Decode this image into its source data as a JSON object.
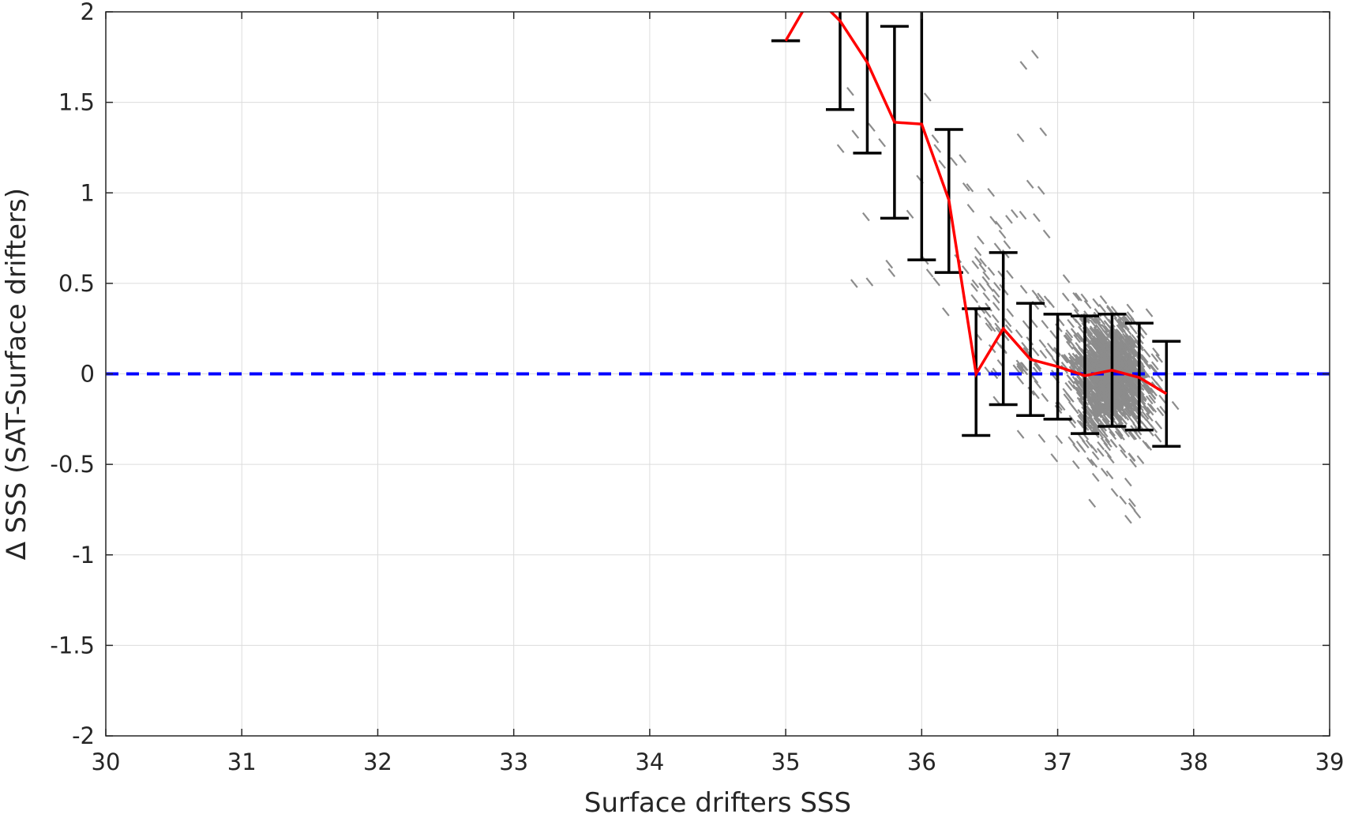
{
  "chart_data": {
    "type": "scatter",
    "xlabel": "Surface drifters SSS",
    "ylabel": "∆ SSS (SAT-Surface drifters)",
    "xlim": [
      30,
      39
    ],
    "ylim": [
      -2,
      2
    ],
    "x_ticks": [
      "30",
      "31",
      "32",
      "33",
      "34",
      "35",
      "36",
      "37",
      "38",
      "39"
    ],
    "y_ticks": [
      "2",
      "1.5",
      "1",
      "0.5",
      "0",
      "-0.5",
      "-1",
      "-1.5",
      "-2"
    ],
    "grid": true,
    "reference_line": {
      "y": 0,
      "style": "dashed",
      "color": "#0000ff"
    },
    "series": [
      {
        "type": "line",
        "color": "#ff0000",
        "x": [
          35.0,
          35.2,
          35.4,
          35.6,
          35.8,
          36.0,
          36.2,
          36.4,
          36.6,
          36.8,
          37.0,
          37.2,
          37.4,
          37.6,
          37.8
        ],
        "y": [
          1.84,
          2.1,
          1.95,
          1.72,
          1.39,
          1.38,
          0.96,
          0.0,
          0.25,
          0.08,
          0.04,
          -0.01,
          0.02,
          -0.02,
          -0.11
        ]
      },
      {
        "type": "errorbar",
        "color": "#000000",
        "x": [
          35.0,
          35.4,
          35.6,
          35.8,
          36.0,
          36.2,
          36.4,
          36.6,
          36.8,
          37.0,
          37.2,
          37.4,
          37.6,
          37.8
        ],
        "low": [
          1.84,
          1.46,
          1.22,
          0.86,
          0.63,
          0.56,
          -0.34,
          -0.17,
          -0.23,
          -0.25,
          -0.33,
          -0.29,
          -0.31,
          -0.4
        ],
        "high": [
          1.84,
          2.1,
          2.1,
          1.92,
          2.1,
          1.35,
          0.36,
          0.67,
          0.39,
          0.33,
          0.32,
          0.33,
          0.28,
          0.18
        ]
      },
      {
        "type": "scatter",
        "color": "#8c8c8c",
        "cloud": {
          "x_center": 37.4,
          "y_center": 0.0,
          "x_spread": 0.35,
          "y_spread": 0.38
        }
      }
    ]
  }
}
